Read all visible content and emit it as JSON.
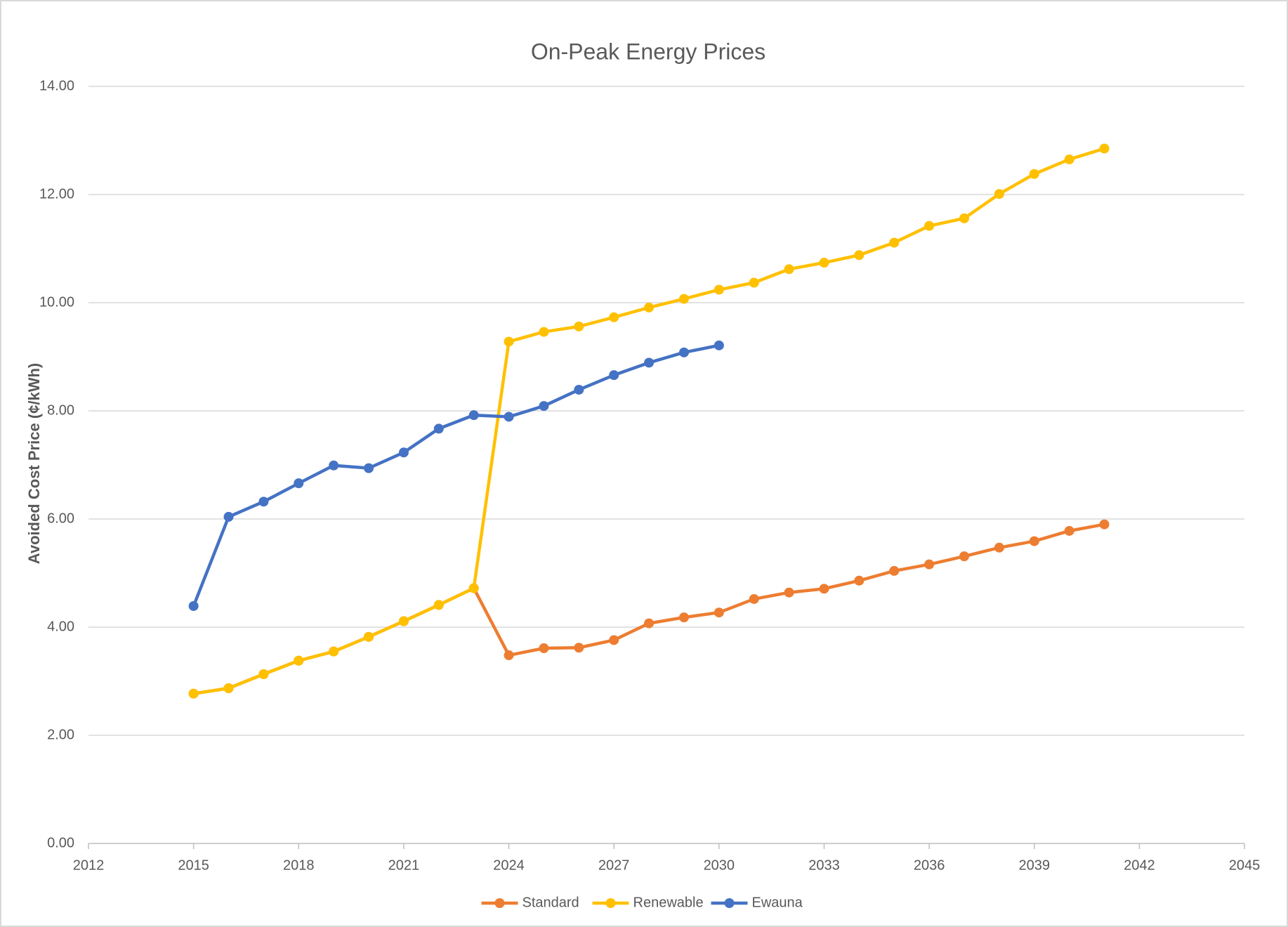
{
  "chart_data": {
    "type": "line",
    "title": "On-Peak Energy Prices",
    "y_label": "Avoided Cost Price (¢/kWh)",
    "x": [
      2015,
      2016,
      2017,
      2018,
      2019,
      2020,
      2021,
      2022,
      2023,
      2024,
      2025,
      2026,
      2027,
      2028,
      2029,
      2030,
      2031,
      2032,
      2033,
      2034,
      2035,
      2036,
      2037,
      2038,
      2039,
      2040,
      2041
    ],
    "series": [
      {
        "name": "Standard",
        "color": "#ed7d31",
        "values": [
          2.77,
          2.87,
          3.13,
          3.38,
          3.55,
          3.82,
          4.11,
          4.41,
          4.72,
          3.48,
          3.61,
          3.62,
          3.76,
          4.07,
          4.18,
          4.27,
          4.52,
          4.64,
          4.71,
          4.86,
          5.04,
          5.16,
          5.31,
          5.47,
          5.59,
          5.78,
          5.9
        ]
      },
      {
        "name": "Renewable",
        "color": "#ffc000",
        "values": [
          2.77,
          2.87,
          3.13,
          3.38,
          3.55,
          3.82,
          4.11,
          4.41,
          4.72,
          9.28,
          9.46,
          9.56,
          9.73,
          9.91,
          10.07,
          10.24,
          10.37,
          10.62,
          10.74,
          10.88,
          11.11,
          11.42,
          11.56,
          12.01,
          12.38,
          12.65,
          12.85
        ]
      },
      {
        "name": "Ewauna",
        "color": "#4472c4",
        "values": [
          4.39,
          6.04,
          6.32,
          6.66,
          6.99,
          6.94,
          7.23,
          7.67,
          7.92,
          7.89,
          8.09,
          8.39,
          8.66,
          8.89,
          9.08,
          9.21,
          null,
          null,
          null,
          null,
          null,
          null,
          null,
          null,
          null,
          null,
          null
        ]
      }
    ],
    "xlim": [
      2012,
      2045
    ],
    "xticks": [
      2012,
      2015,
      2018,
      2021,
      2024,
      2027,
      2030,
      2033,
      2036,
      2039,
      2042,
      2045
    ],
    "ylim": [
      0,
      14
    ],
    "yticks": [
      {
        "value": 0,
        "label": "0.00"
      },
      {
        "value": 2,
        "label": "2.00"
      },
      {
        "value": 4,
        "label": "4.00"
      },
      {
        "value": 6,
        "label": "6.00"
      },
      {
        "value": 8,
        "label": "8.00"
      },
      {
        "value": 10,
        "label": "10.00"
      },
      {
        "value": 12,
        "label": "12.00"
      },
      {
        "value": 14,
        "label": "14.00"
      }
    ],
    "grid": true,
    "legend": "bottom"
  }
}
